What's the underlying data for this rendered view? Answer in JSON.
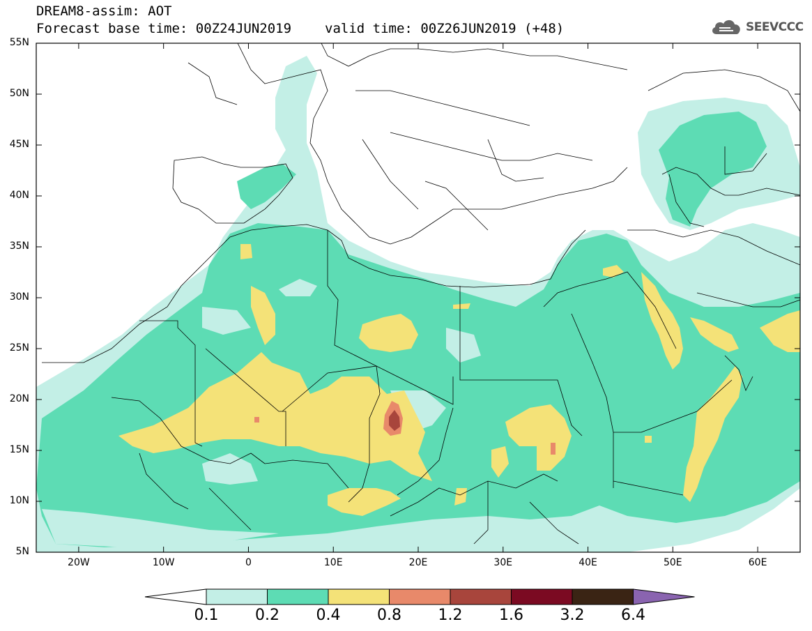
{
  "title": {
    "line1": "DREAM8-assim: AOT",
    "base": "Forecast base time: 00Z24JUN2019",
    "valid": "valid time: 00Z26JUN2019 (+48)"
  },
  "logo": {
    "text": "SEEVCCC",
    "icon": "cloud-icon"
  },
  "map": {
    "lon_range": [
      -25,
      65
    ],
    "lat_range": [
      5,
      55
    ],
    "lat_ticks": [
      "55N",
      "50N",
      "45N",
      "40N",
      "35N",
      "30N",
      "25N",
      "20N",
      "15N",
      "10N",
      "5N"
    ],
    "lon_ticks": [
      "20W",
      "10W",
      "0",
      "10E",
      "20E",
      "30E",
      "40E",
      "50E",
      "60E"
    ]
  },
  "colorbar": {
    "labels": [
      "0.1",
      "0.2",
      "0.4",
      "0.8",
      "1.2",
      "1.6",
      "3.2",
      "6.4"
    ],
    "colors": [
      "#ffffff",
      "#c3efe6",
      "#5ddcb4",
      "#f4e278",
      "#e8896a",
      "#a8453c",
      "#7b0a22",
      "#3a2414",
      "#8a64b0"
    ]
  }
}
